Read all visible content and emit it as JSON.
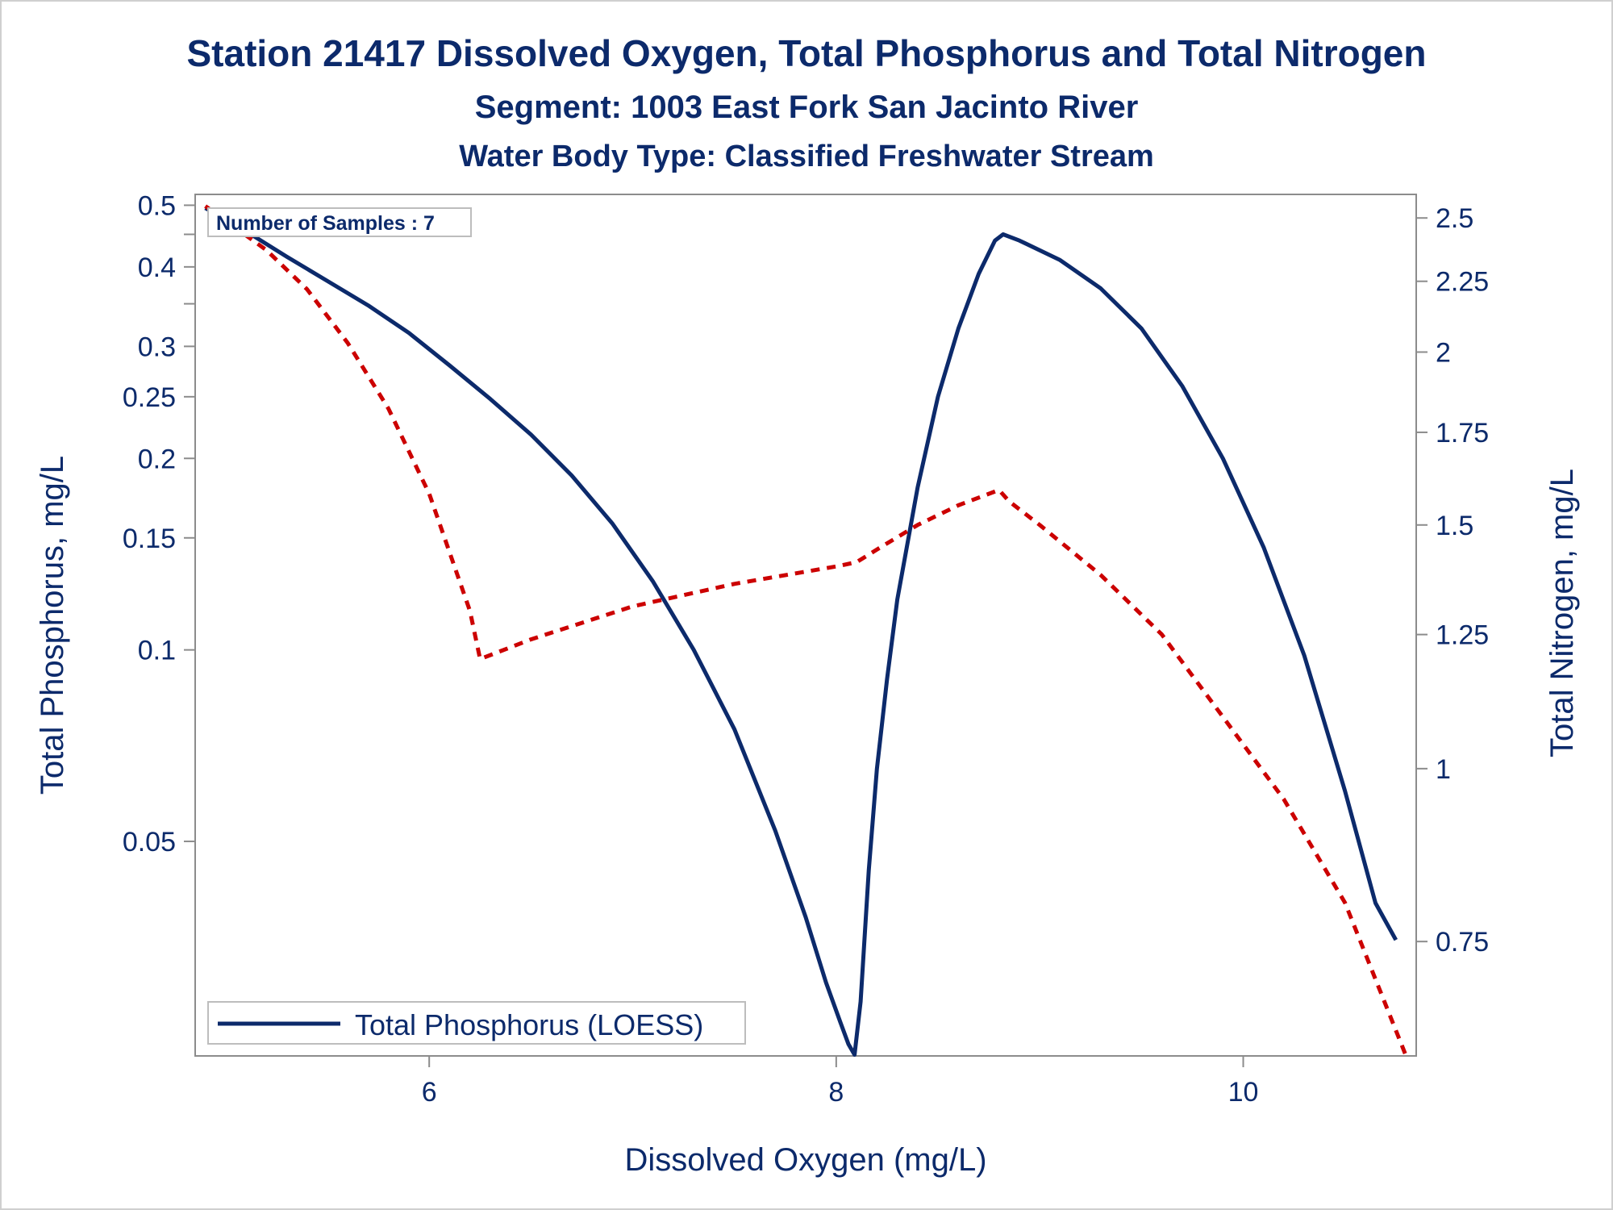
{
  "chart_data": {
    "type": "line",
    "title": "Station 21417  Dissolved Oxygen, Total Phosphorus and Total Nitrogen",
    "subtitle": "Segment: 1003  East Fork San Jacinto River",
    "subtitle2": "Water Body Type: Classified Freshwater Stream",
    "xlabel": "Dissolved Oxygen (mg/L)",
    "ylabel_left": "Total Phosphorus, mg/L",
    "ylabel_right": "Total Nitrogen, mg/L",
    "x_ticks": [
      "6",
      "8",
      "10"
    ],
    "x_tick_values": [
      6,
      8,
      10
    ],
    "xlim": [
      4.85,
      10.85
    ],
    "y_left_scale": "log",
    "y_left_lim": [
      0.023,
      0.52
    ],
    "y_left_ticks": [
      "0.5",
      "0.4",
      "0.3",
      "0.25",
      "0.2",
      "0.15",
      "0.1",
      "0.05"
    ],
    "y_left_tick_values": [
      0.5,
      0.4,
      0.3,
      0.25,
      0.2,
      0.15,
      0.1,
      0.05
    ],
    "y_left_minor_tick_values": [
      0.45,
      0.35
    ],
    "y_right_scale": "log",
    "y_right_lim": [
      0.62,
      2.6
    ],
    "y_right_ticks": [
      "2.5",
      "2.25",
      "2",
      "1.75",
      "1.5",
      "1.25",
      "1",
      "0.75"
    ],
    "y_right_tick_values": [
      2.5,
      2.25,
      2,
      1.75,
      1.5,
      1.25,
      1,
      0.75
    ],
    "annotation": "Number of Samples : 7",
    "legend": {
      "position": "bottom-left",
      "entries": [
        "Total Phosphorus (LOESS)"
      ]
    },
    "series": [
      {
        "name": "Total Phosphorus (LOESS)",
        "axis": "left",
        "style": "solid",
        "color": "#0c2a6b",
        "x": [
          4.9,
          5.1,
          5.3,
          5.5,
          5.7,
          5.9,
          6.1,
          6.3,
          6.5,
          6.7,
          6.9,
          7.1,
          7.3,
          7.5,
          7.7,
          7.85,
          7.95,
          8.02,
          8.06,
          8.09,
          8.12,
          8.16,
          8.2,
          8.25,
          8.3,
          8.4,
          8.5,
          8.6,
          8.7,
          8.78,
          8.82,
          8.9,
          9.1,
          9.3,
          9.5,
          9.7,
          9.9,
          10.1,
          10.3,
          10.5,
          10.65,
          10.75
        ],
        "y": [
          0.495,
          0.455,
          0.415,
          0.38,
          0.348,
          0.315,
          0.28,
          0.248,
          0.218,
          0.188,
          0.158,
          0.128,
          0.1,
          0.075,
          0.052,
          0.038,
          0.03,
          0.026,
          0.024,
          0.0231,
          0.028,
          0.045,
          0.065,
          0.09,
          0.12,
          0.18,
          0.25,
          0.32,
          0.39,
          0.44,
          0.45,
          0.44,
          0.41,
          0.37,
          0.32,
          0.26,
          0.2,
          0.145,
          0.098,
          0.06,
          0.04,
          0.035
        ]
      },
      {
        "name": "",
        "axis": "right",
        "style": "dashed",
        "color": "#cc0000",
        "x": [
          4.9,
          5.2,
          5.4,
          5.6,
          5.8,
          6.0,
          6.2,
          6.25,
          6.5,
          7.0,
          7.5,
          8.0,
          8.1,
          8.2,
          8.4,
          8.6,
          8.8,
          8.85,
          9.0,
          9.3,
          9.6,
          9.9,
          10.2,
          10.5,
          10.8
        ],
        "y": [
          2.55,
          2.37,
          2.22,
          2.03,
          1.82,
          1.58,
          1.3,
          1.2,
          1.24,
          1.31,
          1.36,
          1.4,
          1.41,
          1.44,
          1.5,
          1.55,
          1.59,
          1.56,
          1.5,
          1.38,
          1.25,
          1.09,
          0.95,
          0.8,
          0.62
        ]
      }
    ]
  }
}
